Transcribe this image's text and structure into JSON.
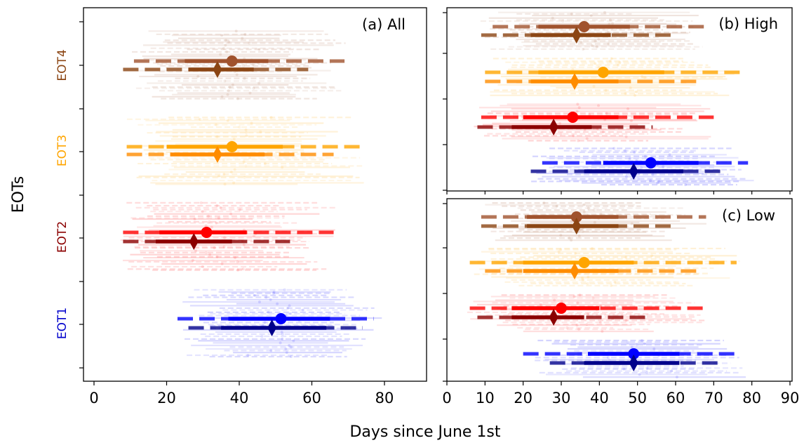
{
  "figure": {
    "xlabel": "Days since June 1st",
    "ylabel": "EOTs"
  },
  "chart_data": [
    {
      "type": "line",
      "panel": "a",
      "title": "(a) All",
      "xlabel": "Days since June 1st",
      "ylabel": "EOTs",
      "xlim": [
        -3,
        92
      ],
      "xticks": [
        0,
        20,
        40,
        60,
        80
      ],
      "ycategories": [
        "EOT1",
        "EOT2",
        "EOT3",
        "EOT4"
      ],
      "category_colors": [
        "#0000cc",
        "#8b0000",
        "#ffa500",
        "#8b4513"
      ],
      "series": [
        {
          "category": "EOT1",
          "kind": "circle",
          "color": "#0000ff",
          "center": 51.5,
          "box": [
            37,
            65
          ],
          "range": [
            23,
            77
          ]
        },
        {
          "category": "EOT1",
          "kind": "diamond",
          "color": "#00008b",
          "center": 49,
          "box": [
            35,
            64
          ],
          "range": [
            26,
            74
          ]
        },
        {
          "category": "EOT2",
          "kind": "circle",
          "color": "#ff0000",
          "center": 31,
          "box": [
            18,
            42
          ],
          "range": [
            8,
            66
          ]
        },
        {
          "category": "EOT2",
          "kind": "diamond",
          "color": "#8b0000",
          "center": 27.5,
          "box": [
            17,
            38
          ],
          "range": [
            8,
            54
          ]
        },
        {
          "category": "EOT3",
          "kind": "circle",
          "color": "#ffa500",
          "center": 38,
          "box": [
            20,
            52
          ],
          "range": [
            9,
            74
          ]
        },
        {
          "category": "EOT3",
          "kind": "diamond",
          "color": "#ff8c00",
          "center": 34,
          "box": [
            21,
            47
          ],
          "range": [
            9,
            66
          ]
        },
        {
          "category": "EOT4",
          "kind": "circle",
          "color": "#a0522d",
          "center": 38,
          "box": [
            25,
            48
          ],
          "range": [
            11,
            69
          ]
        },
        {
          "category": "EOT4",
          "kind": "diamond",
          "color": "#8b4513",
          "center": 34,
          "box": [
            26,
            44
          ],
          "range": [
            8,
            59
          ]
        }
      ]
    },
    {
      "type": "line",
      "panel": "b",
      "title": "(b) High",
      "xlim": [
        0,
        90
      ],
      "ycategories": [
        "EOT1",
        "EOT2",
        "EOT3",
        "EOT4"
      ],
      "series": [
        {
          "category": "EOT1",
          "kind": "circle",
          "color": "#0000ff",
          "center": 53.5,
          "box": [
            41,
            66
          ],
          "range": [
            25,
            79
          ]
        },
        {
          "category": "EOT1",
          "kind": "diamond",
          "color": "#00008b",
          "center": 49,
          "box": [
            36,
            62
          ],
          "range": [
            22,
            72
          ]
        },
        {
          "category": "EOT2",
          "kind": "circle",
          "color": "#ff0000",
          "center": 33,
          "box": [
            20,
            45
          ],
          "range": [
            9,
            70
          ]
        },
        {
          "category": "EOT2",
          "kind": "diamond",
          "color": "#8b0000",
          "center": 28,
          "box": [
            17,
            38
          ],
          "range": [
            8,
            54
          ]
        },
        {
          "category": "EOT3",
          "kind": "circle",
          "color": "#ffa500",
          "center": 41,
          "box": [
            24,
            57
          ],
          "range": [
            10,
            77
          ]
        },
        {
          "category": "EOT3",
          "kind": "diamond",
          "color": "#ff8c00",
          "center": 33.5,
          "box": [
            22,
            45
          ],
          "range": [
            10,
            67
          ]
        },
        {
          "category": "EOT4",
          "kind": "circle",
          "color": "#a0522d",
          "center": 36,
          "box": [
            24,
            48
          ],
          "range": [
            12,
            68
          ]
        },
        {
          "category": "EOT4",
          "kind": "diamond",
          "color": "#8b4513",
          "center": 34,
          "box": [
            22,
            43
          ],
          "range": [
            9,
            59
          ]
        }
      ]
    },
    {
      "type": "line",
      "panel": "c",
      "title": "(c) Low",
      "xlabel": "Days since June 1st",
      "xlim": [
        0,
        90
      ],
      "xticks": [
        0,
        10,
        20,
        30,
        40,
        50,
        60,
        70,
        80,
        90
      ],
      "ycategories": [
        "EOT1",
        "EOT2",
        "EOT3",
        "EOT4"
      ],
      "series": [
        {
          "category": "EOT1",
          "kind": "circle",
          "color": "#0000ff",
          "center": 49,
          "box": [
            37,
            61
          ],
          "range": [
            20,
            77
          ]
        },
        {
          "category": "EOT1",
          "kind": "diamond",
          "color": "#00008b",
          "center": 49,
          "box": [
            36,
            61
          ],
          "range": [
            27,
            72
          ]
        },
        {
          "category": "EOT2",
          "kind": "circle",
          "color": "#ff0000",
          "center": 30,
          "box": [
            17,
            40
          ],
          "range": [
            6,
            68
          ]
        },
        {
          "category": "EOT2",
          "kind": "diamond",
          "color": "#8b0000",
          "center": 28,
          "box": [
            17,
            36
          ],
          "range": [
            8,
            53
          ]
        },
        {
          "category": "EOT3",
          "kind": "circle",
          "color": "#ffa500",
          "center": 36,
          "box": [
            20,
            49
          ],
          "range": [
            6,
            76
          ]
        },
        {
          "category": "EOT3",
          "kind": "diamond",
          "color": "#ff8c00",
          "center": 33.5,
          "box": [
            20,
            45
          ],
          "range": [
            10,
            67
          ]
        },
        {
          "category": "EOT4",
          "kind": "circle",
          "color": "#a0522d",
          "center": 34,
          "box": [
            21,
            45
          ],
          "range": [
            9,
            68
          ]
        },
        {
          "category": "EOT4",
          "kind": "diamond",
          "color": "#8b4513",
          "center": 34,
          "box": [
            21,
            45
          ],
          "range": [
            9,
            60
          ]
        }
      ]
    }
  ]
}
